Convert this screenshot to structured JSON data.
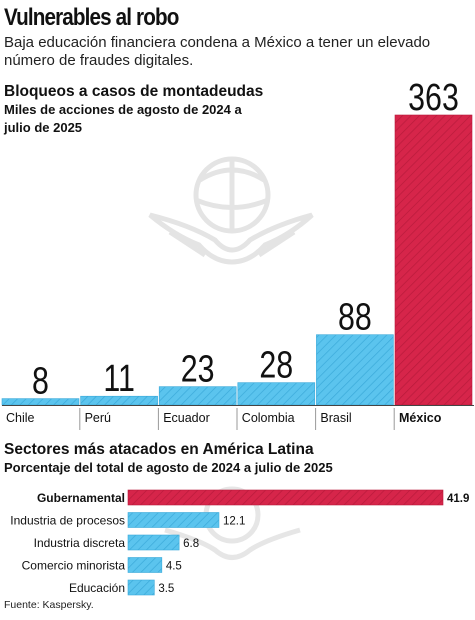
{
  "header": {
    "headline": "Vulnerables al robo",
    "deck": "Baja educación financiera condena a México a tener un elevado número de fraudes digitales."
  },
  "source": "Fuente: Kaspersky.",
  "colors": {
    "highlight": "#d6254a",
    "bar": "#5bc4ee",
    "watermark": "#e6e6e6"
  },
  "watermark_icon": "eagle-globe-emblem",
  "chart_data": [
    {
      "type": "bar",
      "title": "Bloqueos a casos de montadeudas",
      "subtitle": "Miles de acciones de agosto de 2024 a julio de 2025",
      "categories": [
        "Chile",
        "Perú",
        "Ecuador",
        "Colombia",
        "Brasil",
        "México"
      ],
      "values": [
        8,
        11,
        23,
        28,
        88,
        363
      ],
      "highlight": "México",
      "ylim": [
        0,
        363
      ],
      "grid": false,
      "legend": "none"
    },
    {
      "type": "bar",
      "orientation": "horizontal",
      "title": "Sectores más atacados en América Latina",
      "subtitle": "Porcentaje del total de agosto de 2024 a julio de 2025",
      "categories": [
        "Gubernamental",
        "Industria de procesos",
        "Industria discreta",
        "Comercio  minorista",
        "Educación"
      ],
      "values": [
        41.9,
        12.1,
        6.8,
        4.5,
        3.5
      ],
      "highlight": "Gubernamental",
      "xlim": [
        0,
        41.9
      ],
      "grid": false,
      "legend": "none"
    }
  ]
}
